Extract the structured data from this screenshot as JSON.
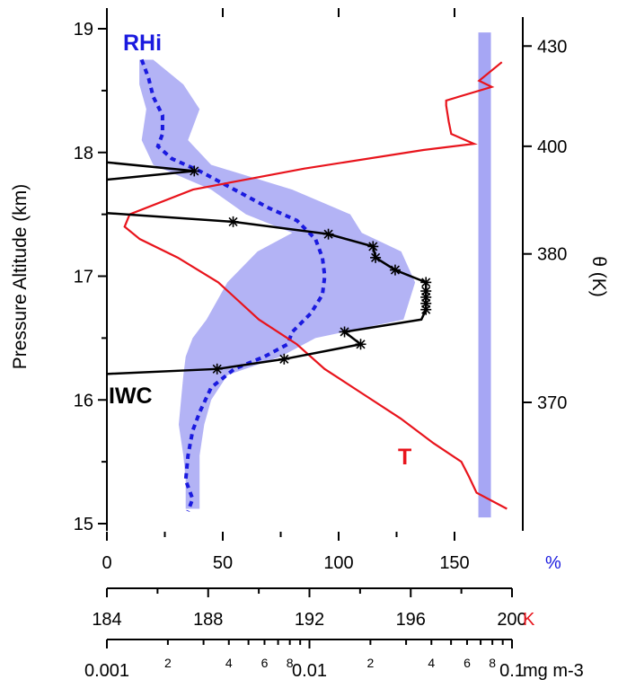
{
  "chart_data": {
    "type": "line",
    "ylabel": "Pressure Altitude (km)",
    "y2label": "θ (K)",
    "ylim": [
      15,
      19
    ],
    "yticks": [
      "15",
      "16",
      "17",
      "18",
      "19"
    ],
    "y2": {
      "ticks": [
        {
          "alt": 15.98,
          "label": "370"
        },
        {
          "alt": 17.18,
          "label": "380"
        },
        {
          "alt": 18.05,
          "label": "400"
        },
        {
          "alt": 18.86,
          "label": "430"
        }
      ]
    },
    "x_axes": [
      {
        "name": "percent",
        "unit": "%",
        "unit_color": "#1a1adf",
        "range": [
          0,
          160
        ],
        "ticklabels": [
          "0",
          "50",
          "100",
          "150"
        ],
        "ticks": [
          0,
          50,
          100,
          150
        ]
      },
      {
        "name": "temperature",
        "unit": "K",
        "unit_color": "#e8141c",
        "range": [
          184,
          200
        ],
        "ticklabels": [
          "184",
          "188",
          "192",
          "196",
          "200"
        ],
        "ticks": [
          184,
          188,
          192,
          196,
          200
        ]
      },
      {
        "name": "iwc",
        "unit": "mg m-3",
        "scale": "log",
        "range": [
          0.001,
          0.1
        ],
        "ticklabels": [
          "0.001",
          "2",
          "4",
          "6",
          "8",
          "0.01",
          "2",
          "4",
          "6",
          "8",
          "0.1"
        ]
      }
    ],
    "series": [
      {
        "name": "RHi",
        "axis": "percent",
        "color": "#1a1adf",
        "style": "dotted",
        "y": [
          18.75,
          18.6,
          18.45,
          18.3,
          18.15,
          18.05,
          17.95,
          17.85,
          17.7,
          17.55,
          17.45,
          17.3,
          17.15,
          17.0,
          16.85,
          16.7,
          16.55,
          16.45,
          16.35,
          16.25,
          16.1,
          15.9,
          15.75,
          15.55,
          15.35,
          15.2,
          15.1
        ],
        "x": [
          15,
          18,
          20,
          24,
          24,
          22,
          28,
          40,
          55,
          70,
          82,
          90,
          93,
          94,
          93,
          88,
          80,
          78,
          68,
          55,
          45,
          40,
          37,
          35,
          34,
          37,
          35
        ]
      },
      {
        "name": "RHi range",
        "axis": "percent",
        "color": "#b3b3f5",
        "style": "band",
        "y": [
          18.75,
          18.55,
          18.35,
          18.1,
          17.9,
          17.7,
          17.5,
          17.35,
          17.2,
          16.95,
          16.65,
          16.5,
          16.35,
          16.2,
          16.0,
          15.8,
          15.55,
          15.35,
          15.12
        ],
        "x_low": [
          14,
          14,
          17,
          15,
          20,
          45,
          60,
          80,
          65,
          52,
          43,
          37,
          34,
          33,
          32,
          31,
          33,
          34,
          34
        ],
        "x_high": [
          20,
          33,
          40,
          35,
          45,
          80,
          105,
          110,
          127,
          133,
          128,
          90,
          75,
          52,
          45,
          42,
          40,
          40,
          40
        ]
      },
      {
        "name": "T",
        "axis": "temperature",
        "color": "#e8141c",
        "style": "solid",
        "y": [
          18.73,
          18.58,
          18.53,
          18.42,
          18.38,
          18.25,
          18.15,
          18.07,
          18.02,
          17.87,
          17.7,
          17.5,
          17.4,
          17.3,
          17.15,
          16.95,
          16.65,
          16.45,
          16.25,
          16.05,
          15.85,
          15.65,
          15.5,
          15.38,
          15.25,
          15.12
        ],
        "x": [
          199.6,
          198.7,
          199.2,
          197.4,
          197.4,
          197.5,
          197.6,
          198.5,
          196.5,
          191.8,
          187.4,
          184.9,
          184.7,
          185.3,
          186.8,
          188.4,
          190.0,
          191.5,
          192.6,
          194.1,
          195.6,
          196.9,
          198.0,
          198.3,
          198.6,
          199.8
        ]
      },
      {
        "name": "IWC",
        "axis": "iwc",
        "color": "#000000",
        "style": "solid-stars",
        "segments": [
          {
            "y": [
              17.92,
              17.85,
              17.78
            ],
            "x": [
              0.001,
              0.0027,
              0.001
            ],
            "stars": [
              1
            ]
          },
          {
            "y": [
              17.51,
              17.44,
              17.34,
              17.24,
              17.15,
              17.05,
              16.95,
              16.88,
              16.83,
              16.78,
              16.73,
              16.65,
              16.55,
              16.45,
              16.33,
              16.25,
              16.21
            ],
            "x": [
              0.001,
              0.0042,
              0.0124,
              0.0206,
              0.0212,
              0.0265,
              0.0376,
              0.0376,
              0.0376,
              0.0376,
              0.0376,
              0.0357,
              0.0149,
              0.0179,
              0.0075,
              0.0035,
              0.001
            ],
            "stars": [
              1,
              2,
              3,
              4,
              5,
              6,
              7,
              8,
              9,
              10,
              12,
              13,
              14,
              15
            ]
          }
        ]
      },
      {
        "name": "bar",
        "axis": "percent",
        "color": "#a6a6f4",
        "style": "vertical-bar",
        "x": 163,
        "y": [
          15.05,
          18.97
        ]
      }
    ],
    "annotations": [
      {
        "text": "RHi",
        "color": "#1a1adf",
        "position": "top-left"
      },
      {
        "text": "IWC",
        "color": "#000000",
        "position": "lower-left"
      },
      {
        "text": "T",
        "color": "#e8141c",
        "position": "lower-right"
      }
    ]
  }
}
